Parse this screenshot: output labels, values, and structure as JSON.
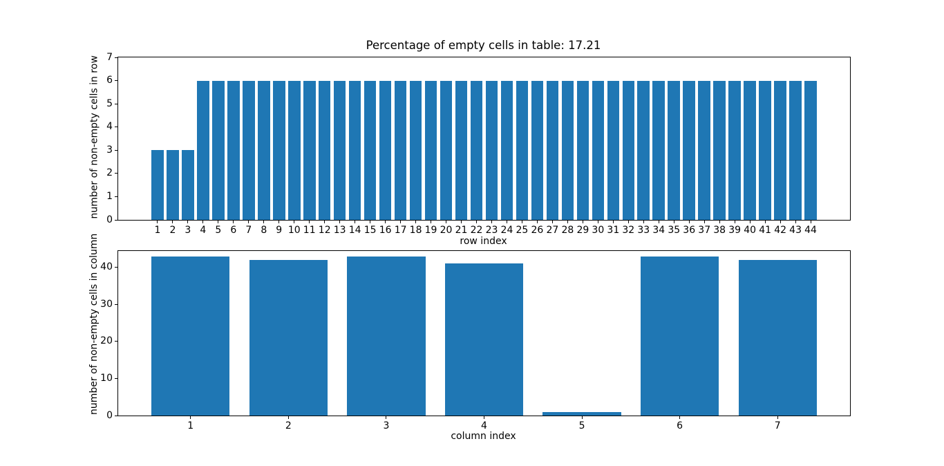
{
  "figure": {
    "background": "#ffffff",
    "bar_color": "#1f77b4",
    "spine_color": "#000000",
    "text_color": "#000000"
  },
  "chart_data": [
    {
      "type": "bar",
      "title": "Percentage of empty cells in table: 17.21",
      "xlabel": "row index",
      "ylabel": "number of non-empty cells in row",
      "x": [
        1,
        2,
        3,
        4,
        5,
        6,
        7,
        8,
        9,
        10,
        11,
        12,
        13,
        14,
        15,
        16,
        17,
        18,
        19,
        20,
        21,
        22,
        23,
        24,
        25,
        26,
        27,
        28,
        29,
        30,
        31,
        32,
        33,
        34,
        35,
        36,
        37,
        38,
        39,
        40,
        41,
        42,
        43,
        44
      ],
      "values": [
        3,
        3,
        3,
        6,
        6,
        6,
        6,
        6,
        6,
        6,
        6,
        6,
        6,
        6,
        6,
        6,
        6,
        6,
        6,
        6,
        6,
        6,
        6,
        6,
        6,
        6,
        6,
        6,
        6,
        6,
        6,
        6,
        6,
        6,
        6,
        6,
        6,
        6,
        6,
        6,
        6,
        6,
        6,
        6
      ],
      "bar_width": 0.8,
      "xlim": [
        -1.59,
        46.59
      ],
      "ylim": [
        0,
        7
      ],
      "yticks": [
        0,
        1,
        2,
        3,
        4,
        5,
        6,
        7
      ],
      "grid": false,
      "legend": null
    },
    {
      "type": "bar",
      "title": "",
      "xlabel": "column index",
      "ylabel": "number of non-empty cells in column",
      "x": [
        1,
        2,
        3,
        4,
        5,
        6,
        7
      ],
      "values": [
        43,
        42,
        43,
        41,
        1,
        43,
        42
      ],
      "bar_width": 0.8,
      "xlim": [
        0.26,
        7.74
      ],
      "ylim": [
        0,
        44.4
      ],
      "yticks": [
        0,
        10,
        20,
        30,
        40
      ],
      "grid": false,
      "legend": null
    }
  ]
}
